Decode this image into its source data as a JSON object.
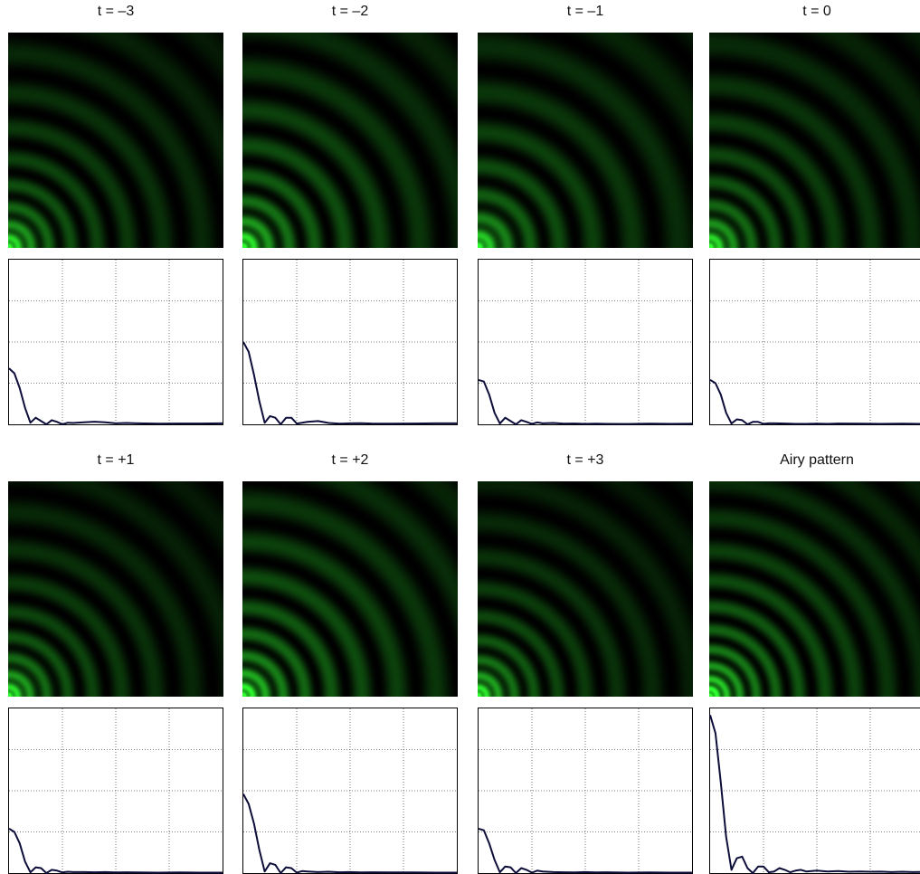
{
  "chart_data": [
    {
      "type": "line",
      "title": "t = –3",
      "pattern": {
        "color": "#00ff00",
        "ring_spacing": 1.0,
        "brightness": 0.7,
        "glow": 0.7
      },
      "xlim": [
        0,
        20
      ],
      "ylim": [
        0,
        1
      ],
      "grid": true,
      "x": [
        0.0,
        0.5,
        1.0,
        1.5,
        2.0,
        2.5,
        3.0,
        3.5,
        4.0,
        4.5,
        5.0,
        5.5,
        6.0,
        7.0,
        8.0,
        9.0,
        10.0,
        11.0,
        12.0,
        14.0,
        16.0,
        18.0,
        20.0
      ],
      "y": [
        0.34,
        0.31,
        0.22,
        0.1,
        0.01,
        0.04,
        0.02,
        0.0,
        0.025,
        0.015,
        0.0,
        0.01,
        0.008,
        0.012,
        0.016,
        0.012,
        0.006,
        0.008,
        0.006,
        0.004,
        0.005,
        0.005,
        0.006
      ]
    },
    {
      "type": "line",
      "title": "t = –2",
      "pattern": {
        "color": "#00ff00",
        "ring_spacing": 1.15,
        "brightness": 0.85,
        "glow": 0.75
      },
      "xlim": [
        0,
        20
      ],
      "ylim": [
        0,
        1
      ],
      "grid": true,
      "x": [
        0.0,
        0.5,
        1.0,
        1.5,
        2.0,
        2.5,
        3.0,
        3.5,
        4.0,
        4.5,
        5.0,
        5.5,
        6.0,
        7.0,
        8.0,
        9.0,
        10.0,
        11.0,
        12.0,
        14.0,
        16.0,
        18.0,
        20.0
      ],
      "y": [
        0.5,
        0.44,
        0.3,
        0.14,
        0.01,
        0.05,
        0.04,
        0.0,
        0.04,
        0.04,
        0.005,
        0.01,
        0.015,
        0.02,
        0.008,
        0.004,
        0.006,
        0.007,
        0.005,
        0.004,
        0.005,
        0.006,
        0.006
      ]
    },
    {
      "type": "line",
      "title": "t = –1",
      "pattern": {
        "color": "#00ff00",
        "ring_spacing": 1.3,
        "brightness": 0.72,
        "glow": 0.95
      },
      "xlim": [
        0,
        20
      ],
      "ylim": [
        0,
        1
      ],
      "grid": true,
      "x": [
        0.0,
        0.5,
        1.0,
        1.5,
        2.0,
        2.5,
        3.0,
        3.5,
        4.0,
        4.5,
        5.0,
        5.5,
        6.0,
        7.0,
        8.0,
        9.0,
        10.0,
        11.0,
        12.0,
        14.0,
        16.0,
        18.0,
        20.0
      ],
      "y": [
        0.27,
        0.26,
        0.18,
        0.07,
        0.005,
        0.04,
        0.02,
        0.0,
        0.025,
        0.015,
        0.002,
        0.012,
        0.006,
        0.008,
        0.004,
        0.005,
        0.003,
        0.004,
        0.003,
        0.002,
        0.004,
        0.003,
        0.004
      ]
    },
    {
      "type": "line",
      "title": "t = 0",
      "pattern": {
        "color": "#00ff00",
        "ring_spacing": 1.05,
        "brightness": 0.72,
        "glow": 0.85
      },
      "xlim": [
        0,
        20
      ],
      "ylim": [
        0,
        1
      ],
      "grid": true,
      "x": [
        0.0,
        0.5,
        1.0,
        1.5,
        2.0,
        2.5,
        3.0,
        3.5,
        4.0,
        4.5,
        5.0,
        5.5,
        6.0,
        7.0,
        8.0,
        9.0,
        10.0,
        11.0,
        12.0,
        14.0,
        16.0,
        18.0,
        20.0
      ],
      "y": [
        0.27,
        0.25,
        0.18,
        0.07,
        0.005,
        0.03,
        0.025,
        0.0,
        0.015,
        0.015,
        0.003,
        0.006,
        0.006,
        0.005,
        0.003,
        0.003,
        0.004,
        0.003,
        0.005,
        0.004,
        0.003,
        0.004,
        0.003
      ]
    },
    {
      "type": "line",
      "title": "t = +1",
      "pattern": {
        "color": "#00ff00",
        "ring_spacing": 0.95,
        "brightness": 0.72,
        "glow": 0.55
      },
      "xlim": [
        0,
        20
      ],
      "ylim": [
        0,
        1
      ],
      "grid": true,
      "x": [
        0.0,
        0.5,
        1.0,
        1.5,
        2.0,
        2.5,
        3.0,
        3.5,
        4.0,
        4.5,
        5.0,
        5.5,
        6.0,
        7.0,
        8.0,
        9.0,
        10.0,
        11.0,
        12.0,
        14.0,
        16.0,
        18.0,
        20.0
      ],
      "y": [
        0.27,
        0.25,
        0.18,
        0.07,
        0.005,
        0.035,
        0.03,
        0.0,
        0.02,
        0.015,
        0.004,
        0.008,
        0.006,
        0.006,
        0.005,
        0.006,
        0.004,
        0.005,
        0.004,
        0.003,
        0.004,
        0.003,
        0.003
      ]
    },
    {
      "type": "line",
      "title": "t = +2",
      "pattern": {
        "color": "#00ff00",
        "ring_spacing": 1.0,
        "brightness": 0.9,
        "glow": 0.8
      },
      "xlim": [
        0,
        20
      ],
      "ylim": [
        0,
        1
      ],
      "grid": true,
      "x": [
        0.0,
        0.5,
        1.0,
        1.5,
        2.0,
        2.5,
        3.0,
        3.5,
        4.0,
        4.5,
        5.0,
        5.5,
        6.0,
        7.0,
        8.0,
        9.0,
        10.0,
        11.0,
        12.0,
        14.0,
        16.0,
        18.0,
        20.0
      ],
      "y": [
        0.48,
        0.42,
        0.3,
        0.14,
        0.01,
        0.06,
        0.05,
        0.0,
        0.035,
        0.03,
        0.003,
        0.012,
        0.01,
        0.006,
        0.008,
        0.005,
        0.006,
        0.004,
        0.005,
        0.004,
        0.004,
        0.003,
        0.003
      ]
    },
    {
      "type": "line",
      "title": "t = +3",
      "pattern": {
        "color": "#00ff00",
        "ring_spacing": 0.9,
        "brightness": 0.75,
        "glow": 0.45
      },
      "xlim": [
        0,
        20
      ],
      "ylim": [
        0,
        1
      ],
      "grid": true,
      "x": [
        0.0,
        0.5,
        1.0,
        1.5,
        2.0,
        2.5,
        3.0,
        3.5,
        4.0,
        4.5,
        5.0,
        5.5,
        6.0,
        7.0,
        8.0,
        9.0,
        10.0,
        11.0,
        12.0,
        14.0,
        16.0,
        18.0,
        20.0
      ],
      "y": [
        0.27,
        0.26,
        0.18,
        0.08,
        0.005,
        0.04,
        0.035,
        0.0,
        0.03,
        0.02,
        0.003,
        0.015,
        0.01,
        0.006,
        0.005,
        0.004,
        0.006,
        0.004,
        0.005,
        0.003,
        0.004,
        0.003,
        0.003
      ]
    },
    {
      "type": "line",
      "title": "Airy pattern",
      "pattern": {
        "color": "#00ff00",
        "ring_spacing": 0.75,
        "brightness": 0.95,
        "glow": 0.55
      },
      "xlim": [
        0,
        20
      ],
      "ylim": [
        0,
        1
      ],
      "grid": true,
      "x": [
        0.0,
        0.5,
        1.0,
        1.5,
        2.0,
        2.5,
        3.0,
        3.5,
        4.0,
        4.5,
        5.0,
        5.5,
        6.0,
        6.5,
        7.0,
        7.5,
        8.0,
        8.5,
        9.0,
        10.0,
        11.0,
        12.0,
        13.0,
        14.0,
        15.0,
        16.0,
        17.0,
        18.0,
        19.0,
        20.0
      ],
      "y": [
        0.96,
        0.85,
        0.55,
        0.22,
        0.02,
        0.09,
        0.1,
        0.03,
        0.0,
        0.04,
        0.04,
        0.005,
        0.01,
        0.03,
        0.02,
        0.005,
        0.015,
        0.02,
        0.01,
        0.015,
        0.01,
        0.012,
        0.008,
        0.01,
        0.008,
        0.009,
        0.006,
        0.008,
        0.006,
        0.007
      ]
    }
  ]
}
